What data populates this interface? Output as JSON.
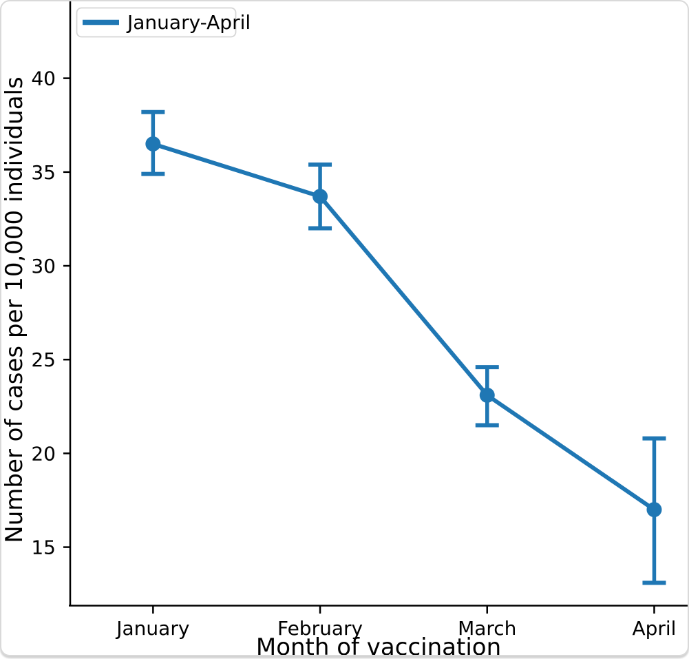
{
  "figure": {
    "background": "#ffffff",
    "card_border_color": "#d9d9d9"
  },
  "chart_data": {
    "type": "line",
    "title": "",
    "categories": [
      "January",
      "February",
      "March",
      "April"
    ],
    "series": [
      {
        "name": "January-April",
        "values": [
          36.5,
          33.7,
          23.1,
          17.0
        ],
        "error_low": [
          34.9,
          32.0,
          21.5,
          13.1
        ],
        "error_high": [
          38.2,
          35.4,
          24.6,
          20.8
        ],
        "color": "#1f77b4"
      }
    ],
    "xlabel": "Month of vaccination",
    "ylabel": "Number of cases per 10,000 individuals",
    "yticks": [
      15,
      20,
      25,
      30,
      35,
      40
    ],
    "ylim": [
      11.9,
      44.1
    ],
    "xlim": [
      -0.5,
      3.2
    ],
    "grid": false,
    "legend": {
      "label": "January-April",
      "position": "upper-left"
    },
    "axis_color": "#000000"
  }
}
